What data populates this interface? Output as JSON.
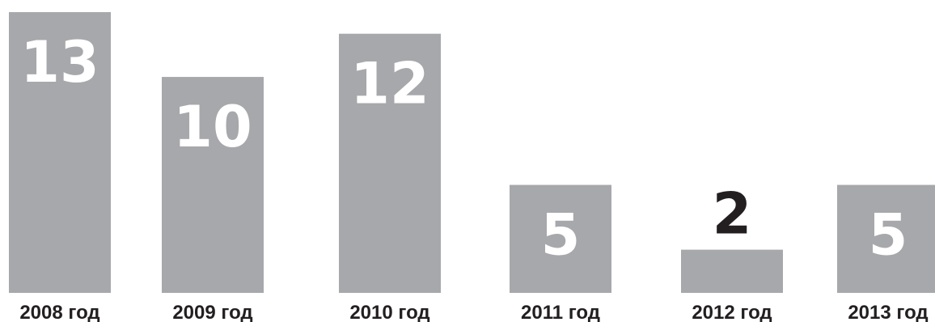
{
  "chart_data": {
    "type": "bar",
    "categories": [
      "2008 год",
      "2009 год",
      "2010 год",
      "2011 год",
      "2012 год",
      "2013 год"
    ],
    "values": [
      13,
      10,
      12,
      5,
      2,
      5
    ],
    "title": "",
    "xlabel": "",
    "ylabel": "",
    "ylim": [
      0,
      13
    ],
    "grid": false,
    "colors": {
      "bar": "#a7a8ab",
      "label_inside": "#ffffff",
      "label_outside": "#231f20",
      "text": "#231f20"
    }
  }
}
